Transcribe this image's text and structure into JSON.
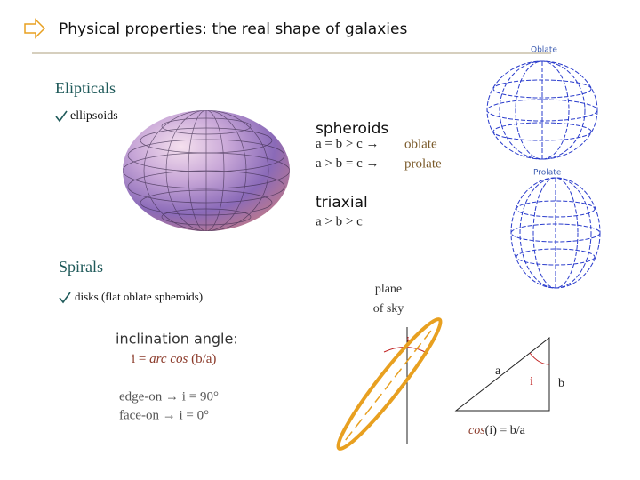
{
  "header": {
    "title": "Physical properties: the real shape of galaxies"
  },
  "ellipticals": {
    "heading": "Elipticals",
    "bullet": "ellipsoids",
    "spheroids": {
      "heading": "spheroids",
      "rows": [
        {
          "relation": "a = b > c  →",
          "name": "oblate"
        },
        {
          "relation": "a > b = c  →",
          "name": "prolate"
        }
      ]
    },
    "triaxial": {
      "heading": "triaxial",
      "relation": "a > b > c"
    },
    "images": {
      "oblate": "Oblate",
      "prolate": "Prolate"
    }
  },
  "spirals": {
    "heading": "Spirals",
    "bullet": "disks (flat oblate spheroids)",
    "inclination": {
      "heading": "inclination angle:",
      "formula": {
        "lhs": "i = ",
        "func": "arc cos",
        "arg": " (b/a)"
      },
      "cases": [
        "edge-on  →  i = 90°",
        "face-on  →  i = 0°"
      ]
    },
    "diagram": {
      "plane": [
        "plane",
        "of sky"
      ],
      "angle": "i",
      "a": "a",
      "i": "i",
      "b": "b",
      "cos": {
        "func": "cos",
        "rest": "(i) = b/a"
      }
    }
  }
}
